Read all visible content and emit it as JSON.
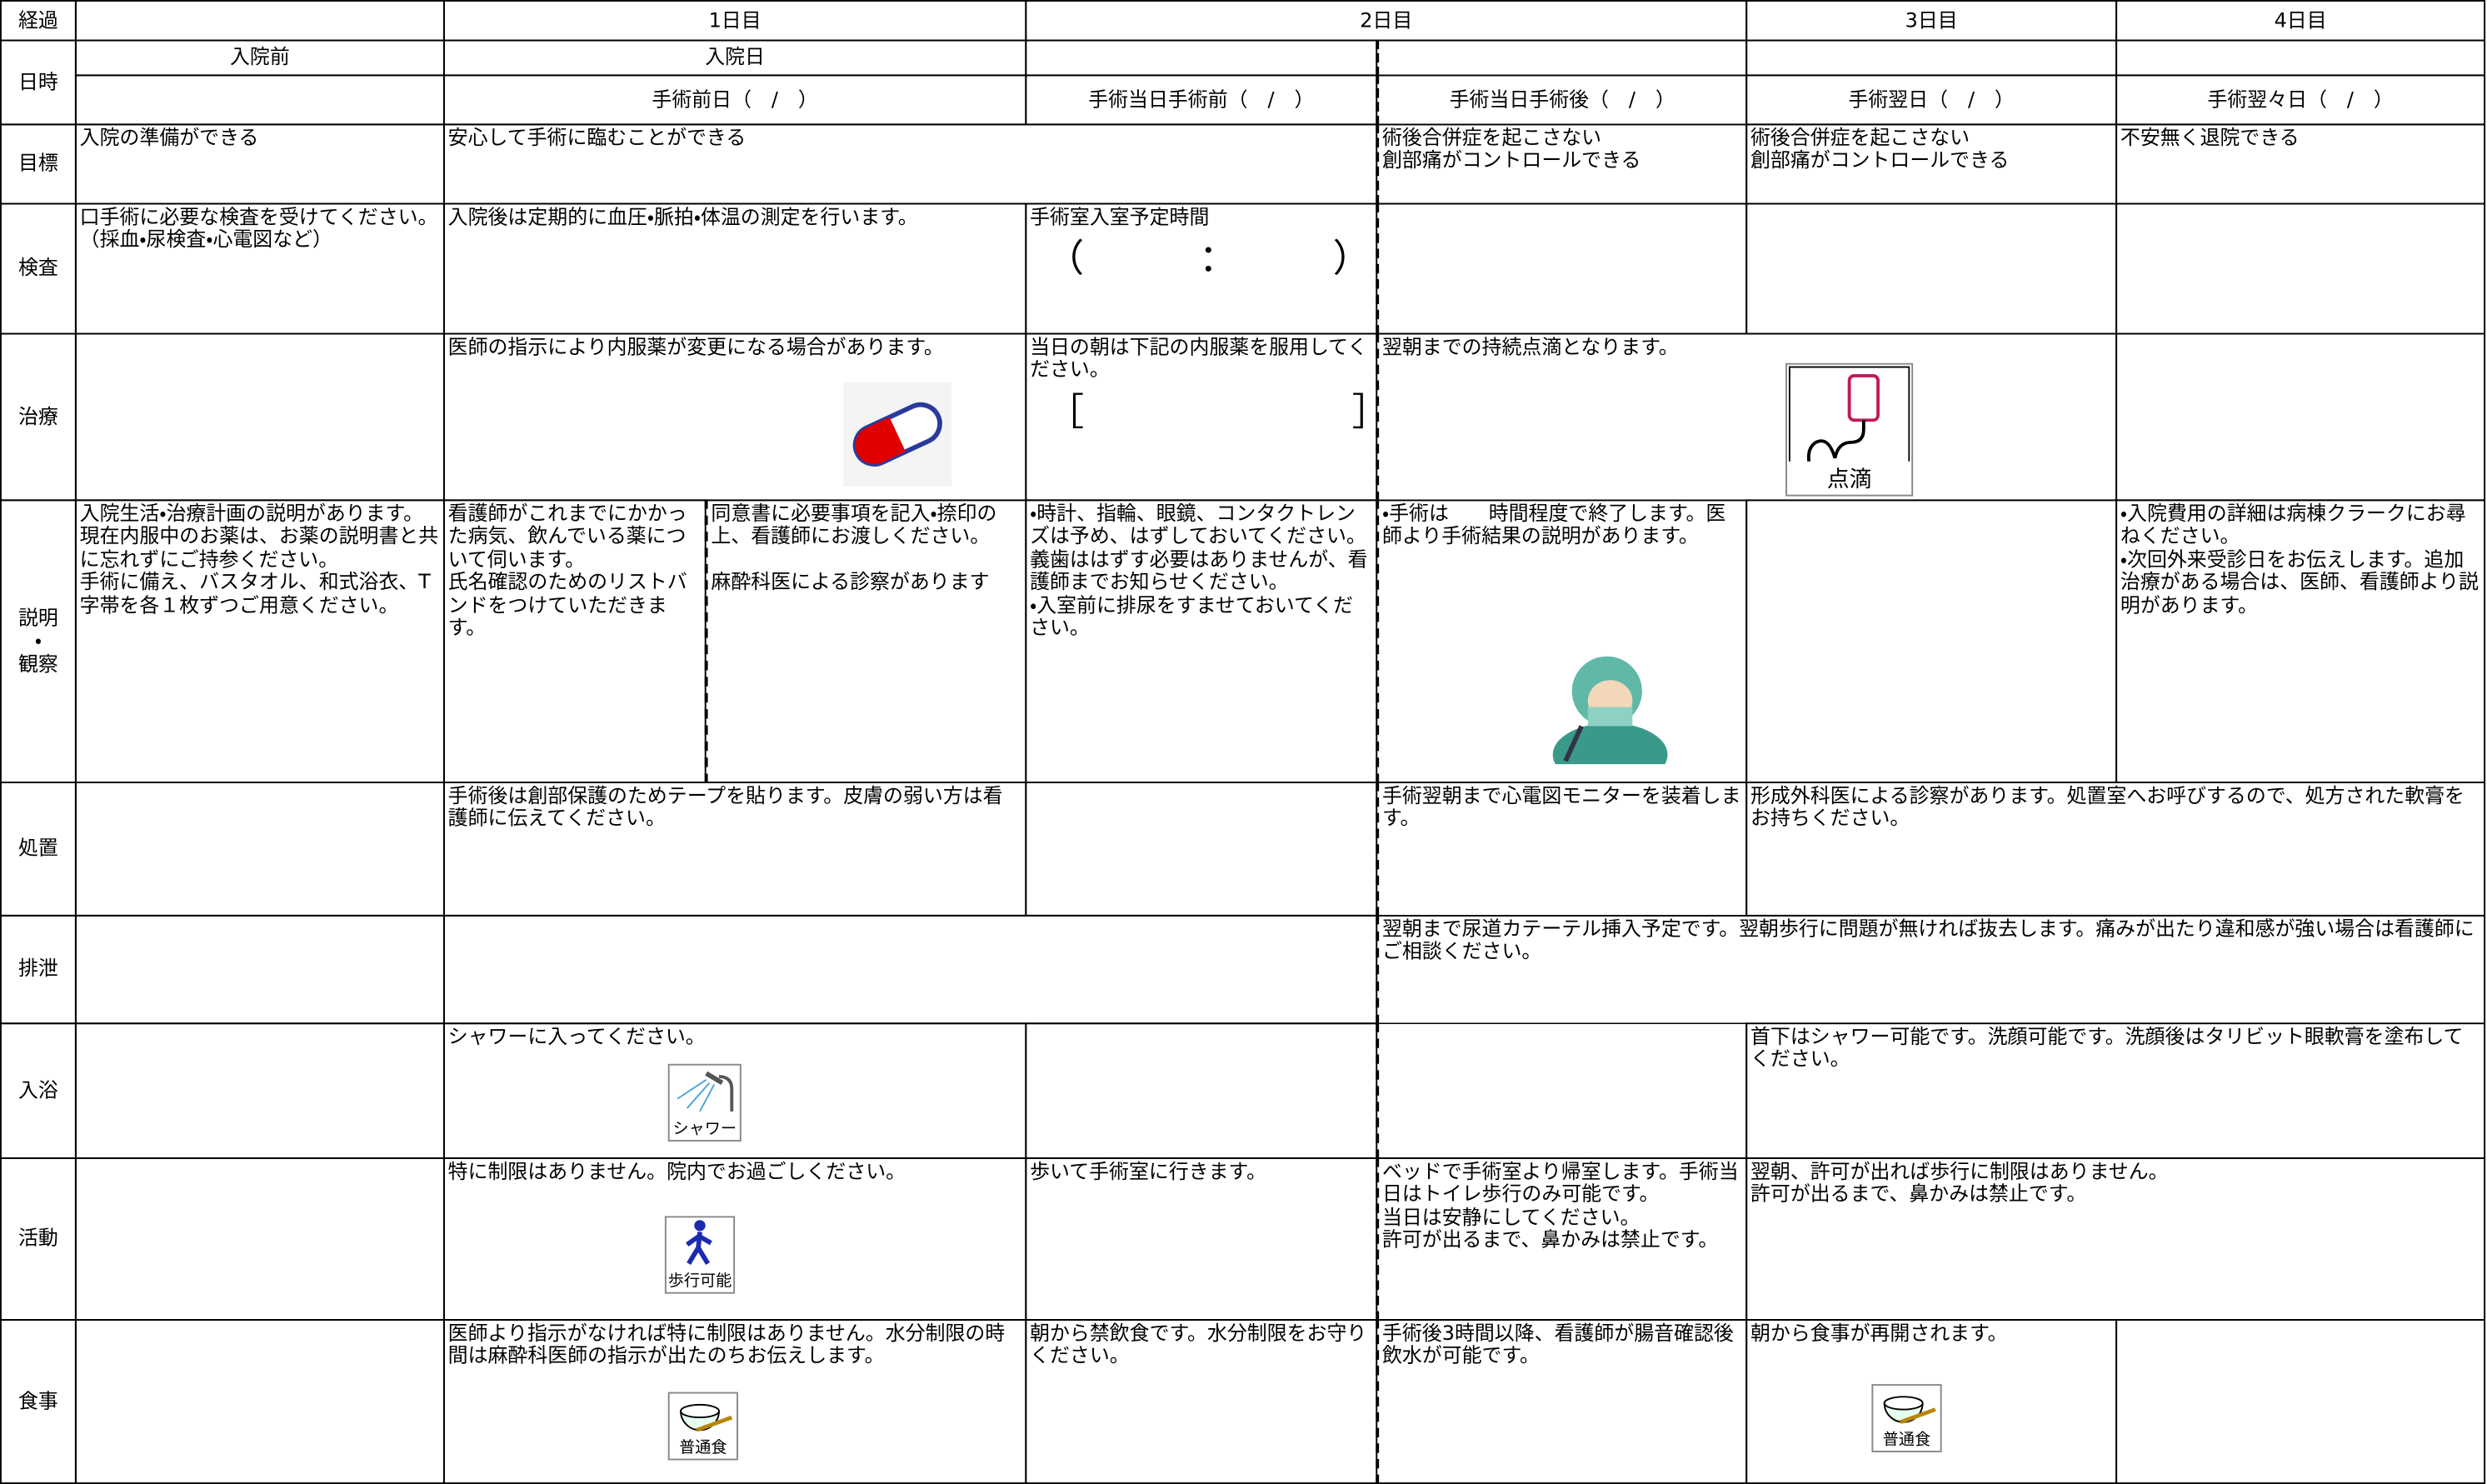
{
  "header": {
    "progress_label": "経過",
    "day1": "1日目",
    "day2": "2日目",
    "day3": "3日目",
    "day4": "4日目",
    "datetime_label": "日時",
    "pre_admission": "入院前",
    "admission_day": "入院日",
    "pre_op_day": "手術前日（　/　）",
    "op_day_before": "手術当日手術前（　/　）",
    "op_day_after": "手術当日手術後（　/　）",
    "post_op_day1": "手術翌日（　/　）",
    "post_op_day2": "手術翌々日（　/　）"
  },
  "rows": [
    {
      "label": "目標",
      "cells": [
        {
          "text": "入院の準備ができる"
        },
        {
          "text": "安心して手術に臨むことができる"
        },
        {
          "text": "術後合併症を起こさない\n創部痛がコントロールできる"
        },
        {
          "text": "術後合併症を起こさない\n創部痛がコントロールできる"
        },
        {
          "text": "不安無く退院できる"
        }
      ]
    },
    {
      "label": "検査",
      "cells": [
        {
          "text": "口手術に必要な検査を受けてください。（採血・尿検査・心電図など）"
        },
        {
          "text": "入院後は定期的に血圧・脈拍・体温の測定を行います。"
        },
        {
          "text": "手術室入室予定時間",
          "detail": "（　　　：　　　）"
        }
      ]
    },
    {
      "label": "治療",
      "cells": [
        {
          "text": "医師の指示により内服薬が変更になる場合があります。"
        },
        {
          "text": "当日の朝は下記の内服薬を服用してください。",
          "detail": "［　　　　　　　］"
        },
        {
          "text": "翌朝までの持続点滴となります。",
          "icon_label": "点滴"
        }
      ]
    },
    {
      "label": "説明\n・\n観察",
      "cells": [
        {
          "text": "入院生活・治療計画の説明があります。\n現在内服中のお薬は、お薬の説明書と共に忘れずにご持参ください。\n手術に備え、バスタオル、和式浴衣、T字帯を各１枚ずつご用意ください。"
        },
        {
          "text": "看護師がこれまでにかかった病気、飲んでいる薬について伺います。\n氏名確認のためのリストバンドをつけていただきます。"
        },
        {
          "text": "同意書に必要事項を記入・捺印の上、看護師にお渡しください。\n\n麻酔科医による診察があります"
        },
        {
          "text": "・時計、指輪、眼鏡、コンタクトレンズは予め、はずしておいてください。義歯ははずす必要はありませんが、看護師までお知らせください。\n・入室前に排尿をすませておいてください。"
        },
        {
          "text": "・手術は　　時間程度で終了します。医師より手術結果の説明があります。"
        },
        {
          "text": "・入院費用の詳細は病棟クラークにお尋ねください。\n・次回外来受診日をお伝えします。追加治療がある場合は、医師、看護師より説明があります。"
        }
      ]
    },
    {
      "label": "処置",
      "cells": [
        {
          "text": "手術後は創部保護のためテープを貼ります。皮膚の弱い方は看護師に伝えてください。"
        },
        {
          "text": "手術翌朝まで心電図モニターを装着します。"
        },
        {
          "text": "形成外科医による診察があります。処置室へお呼びするので、処方された軟膏をお持ちください。"
        }
      ]
    },
    {
      "label": "排泄",
      "cells": [
        {
          "text": "翌朝まで尿道カテーテル挿入予定です。翌朝歩行に問題が無ければ抜去します。痛みが出たり違和感が強い場合は看護師にご相談ください。"
        }
      ]
    },
    {
      "label": "入浴",
      "cells": [
        {
          "text": "シャワーに入ってください。",
          "icon_label": "シャワー"
        },
        {
          "text": "首下はシャワー可能です。洗顔可能です。洗顔後はタリビット眼軟膏を塗布してください。"
        }
      ]
    },
    {
      "label": "活動",
      "cells": [
        {
          "text": "特に制限はありません。院内でお過ごしください。",
          "icon_label": "歩行可能"
        },
        {
          "text": "歩いて手術室に行きます。"
        },
        {
          "text": "ベッドで手術室より帰室します。手術当日はトイレ歩行のみ可能です。\n当日は安静にしてください。\n許可が出るまで、鼻かみは禁止です。"
        },
        {
          "text": "翌朝、許可が出れば歩行に制限はありません。\n許可が出るまで、鼻かみは禁止です。"
        }
      ]
    },
    {
      "label": "食事",
      "cells": [
        {
          "text": "医師より指示がなければ特に制限はありません。水分制限の時間は麻酔科医師の指示が出たのちお伝えします。",
          "icon_label": "普通食"
        },
        {
          "text": "朝から禁飲食です。水分制限をお守りください。"
        },
        {
          "text": "手術後3時間以降、看護師が腸音確認後飲水が可能です。"
        },
        {
          "text": "朝から食事が再開されます。",
          "icon_label": "普通食"
        }
      ]
    }
  ]
}
